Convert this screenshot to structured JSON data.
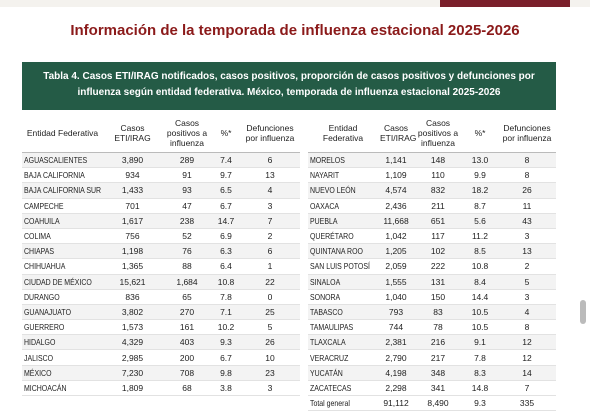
{
  "header": {
    "title": "Información de la temporada de influenza estacional 2025-2026"
  },
  "table": {
    "caption": "Tabla 4. Casos ETI/IRAG notificados, casos positivos, proporción de casos positivos  y defunciones por influenza según entidad federativa. México, temporada de influenza estacional 2025-2026",
    "columns_left": [
      "Entidad Federativa",
      "Casos ETI/IRAG",
      "Casos positivos a influenza",
      "%*",
      "Defunciones por influenza"
    ],
    "columns_right": [
      "Entidad Federativa",
      "Casos ETI/IRAG",
      "Casos positivos a influenza",
      "%*",
      "Defunciones por influenza"
    ],
    "rows_left": [
      [
        "AGUASCALIENTES",
        "3,890",
        "289",
        "7.4",
        "6"
      ],
      [
        "BAJA CALIFORNIA",
        "934",
        "91",
        "9.7",
        "13"
      ],
      [
        "BAJA CALIFORNIA SUR",
        "1,433",
        "93",
        "6.5",
        "4"
      ],
      [
        "CAMPECHE",
        "701",
        "47",
        "6.7",
        "3"
      ],
      [
        "COAHUILA",
        "1,617",
        "238",
        "14.7",
        "7"
      ],
      [
        "COLIMA",
        "756",
        "52",
        "6.9",
        "2"
      ],
      [
        "CHIAPAS",
        "1,198",
        "76",
        "6.3",
        "6"
      ],
      [
        "CHIHUAHUA",
        "1,365",
        "88",
        "6.4",
        "1"
      ],
      [
        "CIUDAD DE MÉXICO",
        "15,621",
        "1,684",
        "10.8",
        "22"
      ],
      [
        "DURANGO",
        "836",
        "65",
        "7.8",
        "0"
      ],
      [
        "GUANAJUATO",
        "3,802",
        "270",
        "7.1",
        "25"
      ],
      [
        "GUERRERO",
        "1,573",
        "161",
        "10.2",
        "5"
      ],
      [
        "HIDALGO",
        "4,329",
        "403",
        "9.3",
        "26"
      ],
      [
        "JALISCO",
        "2,985",
        "200",
        "6.7",
        "10"
      ],
      [
        "MÉXICO",
        "7,230",
        "708",
        "9.8",
        "23"
      ],
      [
        "MICHOACÁN",
        "1,809",
        "68",
        "3.8",
        "3"
      ]
    ],
    "rows_right": [
      [
        "MORELOS",
        "1,141",
        "148",
        "13.0",
        "8"
      ],
      [
        "NAYARIT",
        "1,109",
        "110",
        "9.9",
        "8"
      ],
      [
        "NUEVO LEÓN",
        "4,574",
        "832",
        "18.2",
        "26"
      ],
      [
        "OAXACA",
        "2,436",
        "211",
        "8.7",
        "11"
      ],
      [
        "PUEBLA",
        "11,668",
        "651",
        "5.6",
        "43"
      ],
      [
        "QUERÉTARO",
        "1,042",
        "117",
        "11.2",
        "3"
      ],
      [
        "QUINTANA ROO",
        "1,205",
        "102",
        "8.5",
        "13"
      ],
      [
        "SAN LUIS POTOSÍ",
        "2,059",
        "222",
        "10.8",
        "2"
      ],
      [
        "SINALOA",
        "1,555",
        "131",
        "8.4",
        "5"
      ],
      [
        "SONORA",
        "1,040",
        "150",
        "14.4",
        "3"
      ],
      [
        "TABASCO",
        "793",
        "83",
        "10.5",
        "4"
      ],
      [
        "TAMAULIPAS",
        "744",
        "78",
        "10.5",
        "8"
      ],
      [
        "TLAXCALA",
        "2,381",
        "216",
        "9.1",
        "12"
      ],
      [
        "VERACRUZ",
        "2,790",
        "217",
        "7.8",
        "12"
      ],
      [
        "YUCATÁN",
        "4,198",
        "348",
        "8.3",
        "14"
      ],
      [
        "ZACATECAS",
        "2,298",
        "341",
        "14.8",
        "7"
      ]
    ],
    "total": [
      "Total general",
      "91,112",
      "8,490",
      "9.3",
      "335"
    ]
  }
}
